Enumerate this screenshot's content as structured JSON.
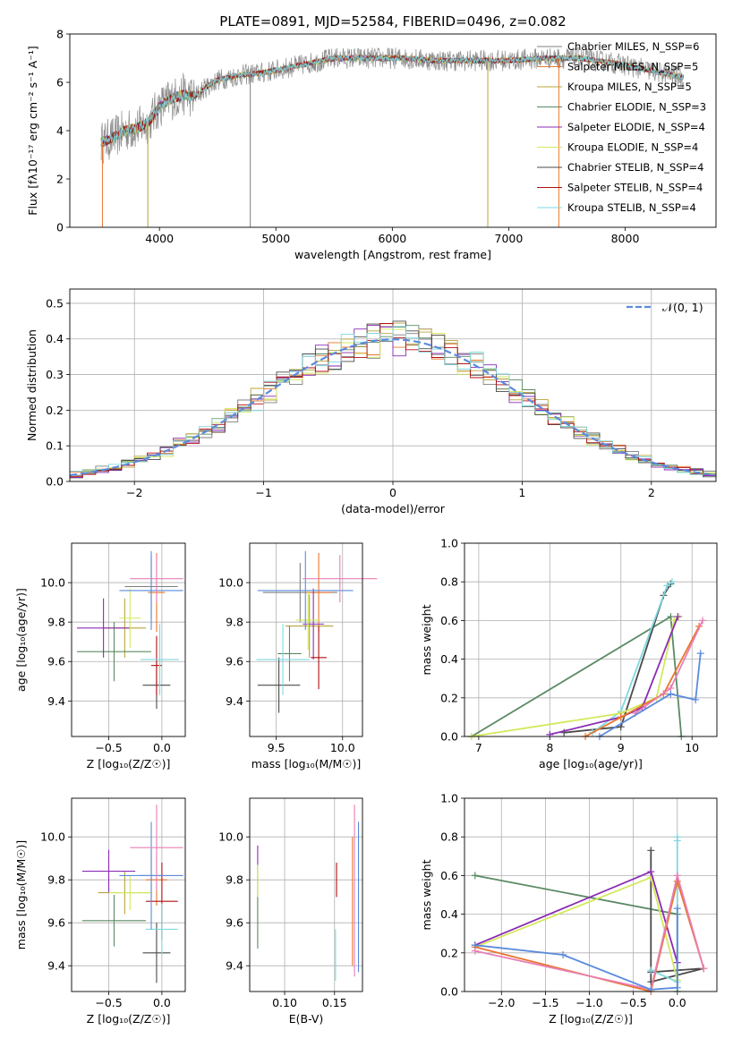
{
  "colors": {
    "chabrier_miles": "#7f7f7f",
    "salpeter_miles": "#e8762d",
    "kroupa_miles": "#b8a43a",
    "chabrier_elodie": "#5b8a63",
    "salpeter_elodie": "#8a2bb5",
    "kroupa_elodie": "#d4e85a",
    "chabrier_stelib": "#4a4a4a",
    "salpeter_stelib": "#b01010",
    "kroupa_stelib": "#7fd8e0",
    "blue": "#5b8bdc",
    "pink": "#e87fb5",
    "grid": "#b0b0b0"
  },
  "chart_data": [
    {
      "id": "spectrum",
      "type": "line",
      "title": "PLATE=0891, MJD=52584, FIBERID=0496, z=0.082",
      "xlabel": "wavelength [Angstrom, rest frame]",
      "ylabel": "Flux [fλ10⁻¹⁷ erg cm⁻² s⁻¹ A⁻¹]",
      "xlim": [
        3230,
        8780
      ],
      "ylim": [
        0,
        8
      ],
      "xticks": [
        "4000",
        "5000",
        "6000",
        "7000",
        "8000"
      ],
      "yticks": [
        "0",
        "2",
        "4",
        "6",
        "8"
      ],
      "grid": false,
      "legend_position": "top-right",
      "legend": [
        "Chabrier MILES, N_SSP=6",
        "Salpeter MILES, N_SSP=5",
        "Kroupa MILES, N_SSP=5",
        "Chabrier ELODIE, N_SSP=3",
        "Salpeter ELODIE, N_SSP=4",
        "Kroupa ELODIE, N_SSP=4",
        "Chabrier STELIB, N_SSP=4",
        "Salpeter STELIB, N_SSP=4",
        "Kroupa STELIB, N_SSP=4"
      ],
      "continuum": {
        "x": [
          3500,
          3600,
          3700,
          3800,
          3900,
          4000,
          4100,
          4200,
          4300,
          4400,
          4500,
          4700,
          4900,
          5100,
          5300,
          5500,
          5800,
          6100,
          6400,
          6700,
          7000,
          7300,
          7600,
          7900,
          8200,
          8500
        ],
        "y": [
          3.5,
          3.7,
          4.0,
          4.1,
          4.3,
          5.0,
          5.3,
          5.5,
          5.4,
          5.8,
          6.1,
          6.3,
          6.4,
          6.6,
          6.8,
          7.0,
          7.0,
          7.0,
          6.9,
          6.9,
          6.9,
          7.0,
          7.0,
          6.8,
          6.5,
          6.2
        ]
      }
    },
    {
      "id": "residuals",
      "type": "histogram",
      "xlabel": "(data-model)/error",
      "ylabel": "Normed distribution",
      "xlim": [
        -2.5,
        2.5
      ],
      "ylim": [
        0,
        0.54
      ],
      "xticks": [
        "−2",
        "−1",
        "0",
        "1",
        "2"
      ],
      "yticks": [
        "0.0",
        "0.1",
        "0.2",
        "0.3",
        "0.4",
        "0.5"
      ],
      "grid": true,
      "legend_position": "top-right",
      "legend": [
        "𝒩(0, 1)"
      ],
      "bin_width": 0.1
    },
    {
      "id": "age_vs_Z",
      "type": "scatter",
      "xlabel": "Z [log₁₀(Z/Z☉)]",
      "ylabel": "age  [log₁₀(age/yr)]",
      "xlim": [
        -0.85,
        0.22
      ],
      "ylim": [
        9.22,
        10.2
      ],
      "xticks": [
        "−0.5",
        "0.0"
      ],
      "yticks": [
        "9.4",
        "9.6",
        "9.8",
        "10.0"
      ],
      "grid": true,
      "points": [
        {
          "series": "chabrier_miles",
          "x": -0.1,
          "y": 9.98,
          "xerr": 0.25,
          "yerr": 0.16
        },
        {
          "series": "salpeter_miles",
          "x": -0.05,
          "y": 9.95,
          "xerr": 0.08,
          "yerr": 0.2
        },
        {
          "series": "kroupa_miles",
          "x": -0.35,
          "y": 9.77,
          "xerr": 0.2,
          "yerr": 0.15
        },
        {
          "series": "chabrier_elodie",
          "x": -0.45,
          "y": 9.65,
          "xerr": 0.35,
          "yerr": 0.15
        },
        {
          "series": "salpeter_elodie",
          "x": -0.55,
          "y": 9.77,
          "xerr": 0.25,
          "yerr": 0.15
        },
        {
          "series": "kroupa_elodie",
          "x": -0.3,
          "y": 9.82,
          "xerr": 0.1,
          "yerr": 0.15
        },
        {
          "series": "chabrier_stelib",
          "x": -0.05,
          "y": 9.48,
          "xerr": 0.13,
          "yerr": 0.12
        },
        {
          "series": "salpeter_stelib",
          "x": -0.05,
          "y": 9.58,
          "xerr": 0.05,
          "yerr": 0.15
        },
        {
          "series": "kroupa_stelib",
          "x": -0.02,
          "y": 9.61,
          "xerr": 0.18,
          "yerr": 0.18
        },
        {
          "series": "blue",
          "x": -0.1,
          "y": 9.96,
          "xerr": 0.3,
          "yerr": 0.2
        },
        {
          "series": "pink",
          "x": -0.05,
          "y": 10.02,
          "xerr": 0.25,
          "yerr": 0.12
        }
      ]
    },
    {
      "id": "age_vs_mass",
      "type": "scatter",
      "xlabel": "mass [log₁₀(M/M☉)]",
      "ylabel": "",
      "xlim": [
        9.3,
        10.15
      ],
      "ylim": [
        9.22,
        10.2
      ],
      "xticks": [
        "9.5",
        "10.0"
      ],
      "yticks": [
        "9.4",
        "9.6",
        "9.8",
        "10.0"
      ],
      "grid": true,
      "points": [
        {
          "series": "chabrier_miles",
          "x": 9.68,
          "y": 9.95,
          "xerr": 0.28,
          "yerr": 0.15
        },
        {
          "series": "salpeter_miles",
          "x": 9.82,
          "y": 9.95,
          "xerr": 0.1,
          "yerr": 0.2
        },
        {
          "series": "kroupa_miles",
          "x": 9.75,
          "y": 9.78,
          "xerr": 0.18,
          "yerr": 0.16
        },
        {
          "series": "chabrier_elodie",
          "x": 9.6,
          "y": 9.64,
          "xerr": 0.09,
          "yerr": 0.14
        },
        {
          "series": "salpeter_elodie",
          "x": 9.78,
          "y": 9.79,
          "xerr": 0.08,
          "yerr": 0.18
        },
        {
          "series": "kroupa_elodie",
          "x": 9.74,
          "y": 9.81,
          "xerr": 0.09,
          "yerr": 0.15
        },
        {
          "series": "chabrier_stelib",
          "x": 9.52,
          "y": 9.48,
          "xerr": 0.16,
          "yerr": 0.14
        },
        {
          "series": "salpeter_stelib",
          "x": 9.82,
          "y": 9.62,
          "xerr": 0.06,
          "yerr": 0.16
        },
        {
          "series": "kroupa_stelib",
          "x": 9.55,
          "y": 9.61,
          "xerr": 0.2,
          "yerr": 0.18
        },
        {
          "series": "blue",
          "x": 9.72,
          "y": 9.96,
          "xerr": 0.36,
          "yerr": 0.2
        },
        {
          "series": "pink",
          "x": 9.98,
          "y": 10.02,
          "xerr": 0.28,
          "yerr": 0.12
        }
      ]
    },
    {
      "id": "weight_vs_age",
      "type": "line",
      "xlabel": "age  [log₁₀(age/yr)]",
      "ylabel": "mass weight",
      "xlim": [
        6.8,
        10.35
      ],
      "ylim": [
        0,
        1.0
      ],
      "xticks": [
        "7",
        "8",
        "9",
        "10"
      ],
      "yticks": [
        "0.0",
        "0.2",
        "0.4",
        "0.6",
        "0.8",
        "1.0"
      ],
      "grid": true,
      "series": [
        {
          "color_key": "chabrier_elodie",
          "x": [
            6.9,
            9.7,
            9.85
          ],
          "y": [
            0.0,
            0.62,
            0.0
          ]
        },
        {
          "color_key": "chabrier_stelib",
          "x": [
            8.2,
            9.0,
            9.6,
            9.7
          ],
          "y": [
            0.02,
            0.05,
            0.73,
            0.79
          ]
        },
        {
          "color_key": "kroupa_stelib",
          "x": [
            8.6,
            9.0,
            9.65,
            9.72
          ],
          "y": [
            0.02,
            0.13,
            0.78,
            0.8
          ]
        },
        {
          "color_key": "kroupa_elodie",
          "x": [
            6.9,
            9.0,
            9.5,
            9.75,
            9.82
          ],
          "y": [
            0.0,
            0.12,
            0.2,
            0.6,
            0.62
          ]
        },
        {
          "color_key": "salpeter_elodie",
          "x": [
            8.0,
            9.0,
            9.3,
            9.8
          ],
          "y": [
            0.01,
            0.1,
            0.15,
            0.62
          ]
        },
        {
          "color_key": "salpeter_miles",
          "x": [
            8.5,
            9.0,
            9.6,
            10.1
          ],
          "y": [
            0.0,
            0.1,
            0.22,
            0.57
          ]
        },
        {
          "color_key": "pink",
          "x": [
            9.2,
            9.7,
            10.15
          ],
          "y": [
            0.12,
            0.25,
            0.6
          ]
        },
        {
          "color_key": "blue",
          "x": [
            8.7,
            9.7,
            10.05,
            10.12
          ],
          "y": [
            0.0,
            0.22,
            0.19,
            0.43
          ]
        }
      ]
    },
    {
      "id": "mass_vs_Z",
      "type": "scatter",
      "xlabel": "Z [log₁₀(Z/Z☉)]",
      "ylabel": "mass [log₁₀(M/M☉)]",
      "xlim": [
        -0.85,
        0.22
      ],
      "ylim": [
        9.28,
        10.18
      ],
      "xticks": [
        "−0.5",
        "0.0"
      ],
      "yticks": [
        "9.4",
        "9.6",
        "9.8",
        "10.0"
      ],
      "grid": true,
      "points": [
        {
          "series": "chabrier_miles",
          "x": -0.1,
          "y": 9.82,
          "xerr": 0.12,
          "yerr": 0.12
        },
        {
          "series": "salpeter_miles",
          "x": -0.05,
          "y": 9.8,
          "xerr": 0.1,
          "yerr": 0.12
        },
        {
          "series": "kroupa_miles",
          "x": -0.35,
          "y": 9.74,
          "xerr": 0.25,
          "yerr": 0.1
        },
        {
          "series": "chabrier_elodie",
          "x": -0.45,
          "y": 9.61,
          "xerr": 0.3,
          "yerr": 0.12
        },
        {
          "series": "salpeter_elodie",
          "x": -0.5,
          "y": 9.84,
          "xerr": 0.25,
          "yerr": 0.1
        },
        {
          "series": "kroupa_elodie",
          "x": -0.3,
          "y": 9.74,
          "xerr": 0.2,
          "yerr": 0.08
        },
        {
          "series": "chabrier_stelib",
          "x": -0.05,
          "y": 9.46,
          "xerr": 0.13,
          "yerr": 0.14
        },
        {
          "series": "salpeter_stelib",
          "x": 0.0,
          "y": 9.7,
          "xerr": 0.15,
          "yerr": 0.18
        },
        {
          "series": "kroupa_stelib",
          "x": 0.0,
          "y": 9.57,
          "xerr": 0.15,
          "yerr": 0.12
        },
        {
          "series": "blue",
          "x": -0.1,
          "y": 9.82,
          "xerr": 0.3,
          "yerr": 0.25
        },
        {
          "series": "pink",
          "x": -0.05,
          "y": 9.95,
          "xerr": 0.25,
          "yerr": 0.2
        }
      ]
    },
    {
      "id": "mass_vs_ebv",
      "type": "scatter",
      "xlabel": "E(B-V)",
      "ylabel": "",
      "xlim": [
        0.065,
        0.178
      ],
      "ylim": [
        9.28,
        10.18
      ],
      "xticks": [
        "0.10",
        "0.15"
      ],
      "yticks": [
        "9.4",
        "9.6",
        "9.8",
        "10.0"
      ],
      "grid": true,
      "points": [
        {
          "series": "salpeter_elodie",
          "x": 0.073,
          "y": 9.84,
          "yerr": 0.12
        },
        {
          "series": "kroupa_elodie",
          "x": 0.073,
          "y": 9.74,
          "yerr": 0.13
        },
        {
          "series": "chabrier_elodie",
          "x": 0.073,
          "y": 9.6,
          "yerr": 0.12
        },
        {
          "series": "kroupa_stelib",
          "x": 0.151,
          "y": 9.45,
          "yerr": 0.12
        },
        {
          "series": "salpeter_stelib",
          "x": 0.152,
          "y": 9.8,
          "yerr": 0.08
        },
        {
          "series": "salpeter_miles",
          "x": 0.168,
          "y": 9.7,
          "yerr": 0.3
        },
        {
          "series": "pink",
          "x": 0.17,
          "y": 9.75,
          "yerr": 0.4
        },
        {
          "series": "blue",
          "x": 0.174,
          "y": 9.72,
          "yerr": 0.35
        }
      ]
    },
    {
      "id": "weight_vs_Z",
      "type": "line",
      "xlabel": "Z [log₁₀(Z/Z☉)]",
      "ylabel": "mass weight",
      "xlim": [
        -2.42,
        0.45
      ],
      "ylim": [
        0,
        1.0
      ],
      "xticks": [
        "−2.0",
        "−1.5",
        "−1.0",
        "−0.5",
        "0.0"
      ],
      "yticks": [
        "0.0",
        "0.2",
        "0.4",
        "0.6",
        "0.8",
        "1.0"
      ],
      "grid": true,
      "series": [
        {
          "color_key": "chabrier_elodie",
          "x": [
            -2.3,
            0.0,
            0.0
          ],
          "y": [
            0.6,
            0.4,
            0.0
          ]
        },
        {
          "color_key": "chabrier_stelib",
          "x": [
            -0.3,
            -0.3,
            0.3,
            -0.3
          ],
          "y": [
            0.73,
            0.05,
            0.12,
            0.1
          ]
        },
        {
          "color_key": "kroupa_stelib",
          "x": [
            -0.3,
            0.0,
            0.0,
            0.0
          ],
          "y": [
            0.11,
            0.05,
            0.78,
            0.8
          ]
        },
        {
          "color_key": "kroupa_elodie",
          "x": [
            -2.3,
            -0.3,
            0.0
          ],
          "y": [
            0.23,
            0.59,
            0.06
          ]
        },
        {
          "color_key": "salpeter_elodie",
          "x": [
            -2.3,
            -0.3,
            0.0
          ],
          "y": [
            0.24,
            0.62,
            0.15
          ]
        },
        {
          "color_key": "salpeter_miles",
          "x": [
            -2.3,
            -0.3,
            0.0,
            0.3
          ],
          "y": [
            0.23,
            0.0,
            0.57,
            0.12
          ]
        },
        {
          "color_key": "pink",
          "x": [
            -2.3,
            -0.3,
            0.0,
            0.3
          ],
          "y": [
            0.21,
            0.01,
            0.6,
            0.12
          ]
        },
        {
          "color_key": "blue",
          "x": [
            -2.3,
            -1.3,
            -0.3,
            0.0,
            0.0
          ],
          "y": [
            0.24,
            0.19,
            0.01,
            0.02,
            0.43
          ]
        }
      ]
    }
  ]
}
